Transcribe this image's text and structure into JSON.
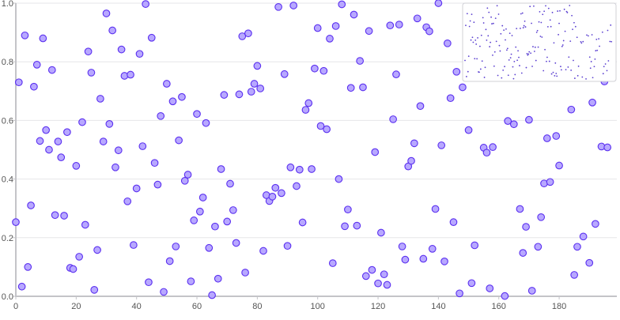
{
  "chart_data": {
    "type": "scatter",
    "title": "",
    "xlabel": "",
    "ylabel": "",
    "xlim": [
      0,
      199
    ],
    "ylim": [
      0,
      1
    ],
    "x_ticks": [
      "0",
      "20",
      "40",
      "60",
      "80",
      "100",
      "120",
      "140",
      "160",
      "180"
    ],
    "y_ticks": [
      "0.0",
      "0.2",
      "0.4",
      "0.6",
      "0.8",
      "1.0"
    ],
    "grid": "horizontal",
    "has_minimap": true,
    "colors": {
      "point_fill": "#b8a8ff",
      "point_stroke": "#5a2ff0",
      "axis": "#c4c4c8",
      "grid": "#e6e6e8",
      "minimap_dot": "#5a3fd0"
    },
    "points": [
      [
        0,
        0.253
      ],
      [
        1,
        0.73
      ],
      [
        2,
        0.033
      ],
      [
        3,
        0.89
      ],
      [
        4,
        0.1
      ],
      [
        5,
        0.31
      ],
      [
        6,
        0.715
      ],
      [
        7,
        0.79
      ],
      [
        8,
        0.53
      ],
      [
        9,
        0.88
      ],
      [
        10,
        0.567
      ],
      [
        11,
        0.5
      ],
      [
        12,
        0.772
      ],
      [
        13,
        0.277
      ],
      [
        14,
        0.528
      ],
      [
        15,
        0.474
      ],
      [
        16,
        0.275
      ],
      [
        17,
        0.56
      ],
      [
        18,
        0.097
      ],
      [
        19,
        0.093
      ],
      [
        20,
        0.445
      ],
      [
        21,
        0.135
      ],
      [
        22,
        0.594
      ],
      [
        23,
        0.244
      ],
      [
        24,
        0.835
      ],
      [
        25,
        0.763
      ],
      [
        26,
        0.022
      ],
      [
        27,
        0.158
      ],
      [
        28,
        0.674
      ],
      [
        29,
        0.528
      ],
      [
        30,
        0.965
      ],
      [
        31,
        0.588
      ],
      [
        32,
        0.907
      ],
      [
        33,
        0.44
      ],
      [
        34,
        0.498
      ],
      [
        35,
        0.842
      ],
      [
        36,
        0.752
      ],
      [
        37,
        0.324
      ],
      [
        38,
        0.756
      ],
      [
        39,
        0.175
      ],
      [
        40,
        0.368
      ],
      [
        41,
        0.827
      ],
      [
        42,
        0.512
      ],
      [
        43,
        0.997
      ],
      [
        44,
        0.048
      ],
      [
        45,
        0.882
      ],
      [
        46,
        0.455
      ],
      [
        47,
        0.381
      ],
      [
        48,
        0.615
      ],
      [
        49,
        0.015
      ],
      [
        50,
        0.725
      ],
      [
        51,
        0.12
      ],
      [
        52,
        0.665
      ],
      [
        53,
        0.17
      ],
      [
        54,
        0.532
      ],
      [
        55,
        0.68
      ],
      [
        56,
        0.394
      ],
      [
        57,
        0.415
      ],
      [
        58,
        0.051
      ],
      [
        59,
        0.259
      ],
      [
        60,
        0.622
      ],
      [
        61,
        0.289
      ],
      [
        62,
        0.337
      ],
      [
        63,
        0.591
      ],
      [
        64,
        0.165
      ],
      [
        65,
        0.004
      ],
      [
        66,
        0.238
      ],
      [
        67,
        0.06
      ],
      [
        68,
        0.434
      ],
      [
        69,
        0.687
      ],
      [
        70,
        0.255
      ],
      [
        71,
        0.384
      ],
      [
        72,
        0.294
      ],
      [
        73,
        0.182
      ],
      [
        74,
        0.689
      ],
      [
        75,
        0.887
      ],
      [
        76,
        0.081
      ],
      [
        77,
        0.897
      ],
      [
        78,
        0.698
      ],
      [
        79,
        0.725
      ],
      [
        80,
        0.786
      ],
      [
        81,
        0.709
      ],
      [
        82,
        0.155
      ],
      [
        83,
        0.345
      ],
      [
        84,
        0.325
      ],
      [
        85,
        0.34
      ],
      [
        86,
        0.37
      ],
      [
        87,
        0.987
      ],
      [
        88,
        0.352
      ],
      [
        89,
        0.758
      ],
      [
        90,
        0.172
      ],
      [
        91,
        0.44
      ],
      [
        92,
        0.992
      ],
      [
        93,
        0.376
      ],
      [
        94,
        0.432
      ],
      [
        95,
        0.252
      ],
      [
        96,
        0.636
      ],
      [
        97,
        0.659
      ],
      [
        98,
        0.434
      ],
      [
        99,
        0.777
      ],
      [
        100,
        0.915
      ],
      [
        101,
        0.581
      ],
      [
        102,
        0.769
      ],
      [
        103,
        0.57
      ],
      [
        104,
        0.879
      ],
      [
        105,
        0.113
      ],
      [
        106,
        0.922
      ],
      [
        107,
        0.4
      ],
      [
        108,
        0.996
      ],
      [
        109,
        0.239
      ],
      [
        110,
        0.296
      ],
      [
        111,
        0.711
      ],
      [
        112,
        0.961
      ],
      [
        113,
        0.241
      ],
      [
        114,
        0.803
      ],
      [
        115,
        0.713
      ],
      [
        116,
        0.069
      ],
      [
        117,
        0.905
      ],
      [
        118,
        0.09
      ],
      [
        119,
        0.492
      ],
      [
        120,
        0.044
      ],
      [
        121,
        0.217
      ],
      [
        122,
        0.075
      ],
      [
        123,
        0.039
      ],
      [
        124,
        0.924
      ],
      [
        125,
        0.604
      ],
      [
        126,
        0.757
      ],
      [
        127,
        0.927
      ],
      [
        128,
        0.17
      ],
      [
        129,
        0.125
      ],
      [
        130,
        0.443
      ],
      [
        131,
        0.462
      ],
      [
        132,
        0.522
      ],
      [
        133,
        0.948
      ],
      [
        134,
        0.649
      ],
      [
        135,
        0.128
      ],
      [
        136,
        0.918
      ],
      [
        137,
        0.904
      ],
      [
        138,
        0.162
      ],
      [
        139,
        0.298
      ],
      [
        140,
        1.0
      ],
      [
        141,
        0.515
      ],
      [
        142,
        0.119
      ],
      [
        143,
        0.863
      ],
      [
        144,
        0.676
      ],
      [
        145,
        0.253
      ],
      [
        146,
        0.766
      ],
      [
        147,
        0.01
      ],
      [
        148,
        0.713
      ],
      [
        150,
        0.567
      ],
      [
        151,
        0.045
      ],
      [
        152,
        0.174
      ],
      [
        155,
        0.507
      ],
      [
        156,
        0.49
      ],
      [
        157,
        0.027
      ],
      [
        158,
        0.509
      ],
      [
        162,
        0.001
      ],
      [
        163,
        0.598
      ],
      [
        165,
        0.587
      ],
      [
        167,
        0.298
      ],
      [
        168,
        0.148
      ],
      [
        169,
        0.237
      ],
      [
        170,
        0.602
      ],
      [
        171,
        0.019
      ],
      [
        173,
        0.169
      ],
      [
        174,
        0.27
      ],
      [
        175,
        0.385
      ],
      [
        176,
        0.539
      ],
      [
        177,
        0.39
      ],
      [
        179,
        0.547
      ],
      [
        180,
        0.446
      ],
      [
        184,
        0.637
      ],
      [
        185,
        0.073
      ],
      [
        186,
        0.169
      ],
      [
        188,
        0.204
      ],
      [
        190,
        0.114
      ],
      [
        191,
        0.661
      ],
      [
        192,
        0.247
      ],
      [
        194,
        0.511
      ],
      [
        195,
        0.733
      ],
      [
        196,
        0.508
      ]
    ]
  }
}
